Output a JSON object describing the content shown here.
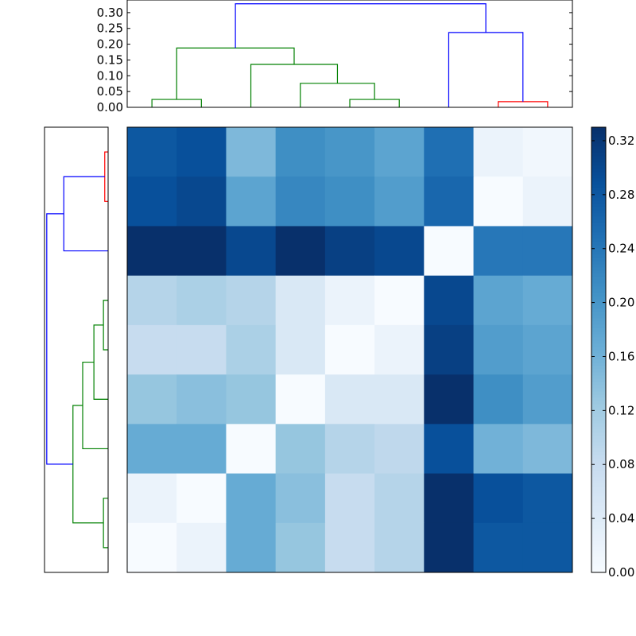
{
  "chart_data": {
    "type": "heatmap",
    "title": "",
    "colormap": "Blues",
    "cell_values": [
      [
        0.28,
        0.29,
        0.15,
        0.21,
        0.2,
        0.18,
        0.25,
        0.02,
        0.01
      ],
      [
        0.29,
        0.3,
        0.18,
        0.22,
        0.21,
        0.19,
        0.26,
        0.0,
        0.02
      ],
      [
        0.33,
        0.33,
        0.3,
        0.33,
        0.31,
        0.3,
        0.0,
        0.24,
        0.24
      ],
      [
        0.1,
        0.11,
        0.1,
        0.05,
        0.02,
        0.0,
        0.3,
        0.18,
        0.17
      ],
      [
        0.08,
        0.08,
        0.11,
        0.05,
        0.0,
        0.02,
        0.31,
        0.19,
        0.18
      ],
      [
        0.13,
        0.14,
        0.13,
        0.0,
        0.05,
        0.05,
        0.33,
        0.21,
        0.19
      ],
      [
        0.17,
        0.17,
        0.0,
        0.13,
        0.1,
        0.09,
        0.29,
        0.16,
        0.15
      ],
      [
        0.02,
        0.0,
        0.17,
        0.14,
        0.08,
        0.1,
        0.33,
        0.29,
        0.28
      ],
      [
        0.0,
        0.02,
        0.17,
        0.13,
        0.08,
        0.1,
        0.33,
        0.28,
        0.28
      ]
    ],
    "colorbar": {
      "range": [
        0.0,
        0.33
      ],
      "ticks": [
        "0.00",
        "0.04",
        "0.08",
        "0.12",
        "0.16",
        "0.20",
        "0.24",
        "0.28",
        "0.32"
      ]
    },
    "top_dendrogram": {
      "ylim": [
        0.0,
        0.34
      ],
      "ticks": [
        "0.00",
        "0.05",
        "0.10",
        "0.15",
        "0.20",
        "0.25",
        "0.30"
      ],
      "links": [
        {
          "color": "#008000",
          "left": 0.5,
          "right": 1.5,
          "h0l": 0.0,
          "h0r": 0.0,
          "h": 0.025
        },
        {
          "color": "#008000",
          "left": 4.5,
          "right": 5.5,
          "h0l": 0.0,
          "h0r": 0.0,
          "h": 0.025
        },
        {
          "color": "#008000",
          "left": 3.5,
          "right": 5.0,
          "h0l": 0.0,
          "h0r": 0.025,
          "h": 0.076
        },
        {
          "color": "#008000",
          "left": 2.5,
          "right": 4.25,
          "h0l": 0.0,
          "h0r": 0.076,
          "h": 0.136
        },
        {
          "color": "#008000",
          "left": 1.0,
          "right": 3.375,
          "h0l": 0.025,
          "h0r": 0.136,
          "h": 0.188
        },
        {
          "color": "#ff0000",
          "left": 7.5,
          "right": 8.5,
          "h0l": 0.0,
          "h0r": 0.0,
          "h": 0.018
        },
        {
          "color": "#0000ff",
          "left": 6.5,
          "right": 8.0,
          "h0l": 0.0,
          "h0r": 0.018,
          "h": 0.237
        },
        {
          "color": "#0000ff",
          "left": 2.1875,
          "right": 7.25,
          "h0l": 0.188,
          "h0r": 0.237,
          "h": 0.328
        }
      ]
    },
    "left_dendrogram": {
      "xlim": [
        0.0,
        0.34
      ],
      "links": [
        {
          "color": "#ff0000",
          "left": 0.5,
          "right": 1.5,
          "h0l": 0.0,
          "h0r": 0.0,
          "h": 0.018
        },
        {
          "color": "#0000ff",
          "left": 1.0,
          "right": 2.5,
          "h0l": 0.018,
          "h0r": 0.0,
          "h": 0.237
        },
        {
          "color": "#008000",
          "left": 3.5,
          "right": 4.5,
          "h0l": 0.0,
          "h0r": 0.0,
          "h": 0.025
        },
        {
          "color": "#008000",
          "left": 4.0,
          "right": 5.5,
          "h0l": 0.025,
          "h0r": 0.0,
          "h": 0.076
        },
        {
          "color": "#008000",
          "left": 4.75,
          "right": 6.5,
          "h0l": 0.076,
          "h0r": 0.0,
          "h": 0.136
        },
        {
          "color": "#008000",
          "left": 7.5,
          "right": 8.5,
          "h0l": 0.0,
          "h0r": 0.0,
          "h": 0.025
        },
        {
          "color": "#008000",
          "left": 5.625,
          "right": 8.0,
          "h0l": 0.136,
          "h0r": 0.025,
          "h": 0.188
        },
        {
          "color": "#0000ff",
          "left": 1.75,
          "right": 6.8125,
          "h0l": 0.237,
          "h0r": 0.188,
          "h": 0.328
        }
      ]
    }
  }
}
